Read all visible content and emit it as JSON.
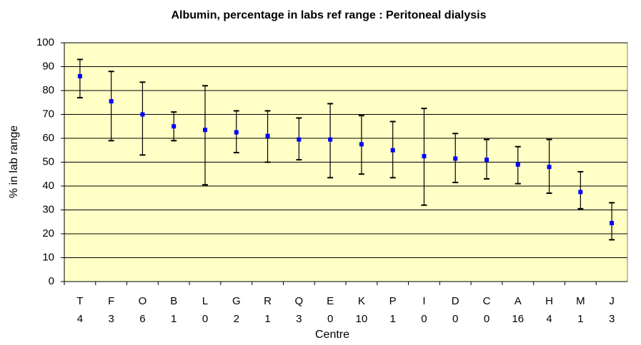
{
  "chart_data": {
    "type": "errorbar",
    "title": "Albumin, percentage in labs ref range : Peritoneal dialysis",
    "x_label": "Centre",
    "y_label": "% in lab range",
    "categories": [
      "T",
      "F",
      "O",
      "B",
      "L",
      "G",
      "R",
      "Q",
      "E",
      "K",
      "P",
      "I",
      "D",
      "C",
      "A",
      "H",
      "M",
      "J"
    ],
    "sublabels": [
      4,
      3,
      6,
      1,
      0,
      2,
      1,
      3,
      0,
      10,
      1,
      0,
      0,
      0,
      16,
      4,
      1,
      3
    ],
    "values": [
      86,
      75.5,
      70,
      65,
      63.5,
      62.5,
      61,
      59.5,
      59.5,
      57.5,
      55,
      52.5,
      51.5,
      51,
      49,
      48,
      37.5,
      24.5
    ],
    "lower": [
      77,
      59,
      53,
      59,
      40.5,
      54,
      50,
      51,
      43.5,
      45,
      43.5,
      32,
      41.5,
      43,
      41,
      37,
      30.5,
      17.5
    ],
    "upper": [
      93,
      88,
      83.5,
      71,
      82,
      71.5,
      71.5,
      68.5,
      74.5,
      69.5,
      67,
      72.5,
      62,
      59.5,
      56.5,
      59.5,
      46,
      33
    ],
    "color": "#0000ff",
    "ylim": [
      0,
      100
    ],
    "yticks": [
      0,
      10,
      20,
      30,
      40,
      50,
      60,
      70,
      80,
      90,
      100
    ],
    "grid": true
  }
}
